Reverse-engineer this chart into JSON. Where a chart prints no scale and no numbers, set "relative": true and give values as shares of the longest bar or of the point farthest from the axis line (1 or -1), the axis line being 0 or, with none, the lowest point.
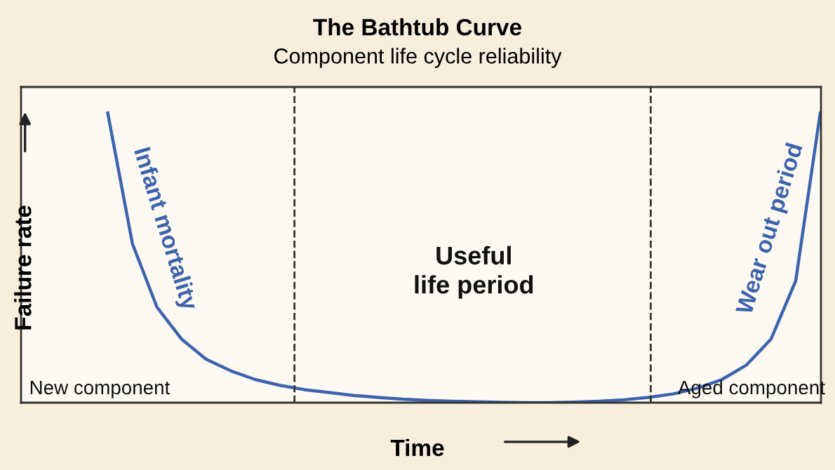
{
  "chart_data": {
    "type": "line",
    "relative": true,
    "title": "The Bathtub Curve",
    "subtitle": "Component life cycle reliability",
    "xlabel": "Time",
    "ylabel": "Failure rate",
    "categories": [
      null,
      null,
      null,
      null,
      null,
      null,
      null,
      null,
      null,
      null,
      null,
      null,
      null,
      null,
      null,
      null,
      null,
      null,
      null,
      null,
      null,
      null,
      null,
      null,
      null,
      null,
      null,
      null,
      null,
      null
    ],
    "series": [
      {
        "color": "#3d63ad",
        "values": [
          1.0,
          0.55,
          0.33,
          0.22,
          0.15,
          0.11,
          0.08,
          0.06,
          0.045,
          0.035,
          0.025,
          0.018,
          0.012,
          0.008,
          0.005,
          0.003,
          0.001,
          0.0,
          0.0,
          0.002,
          0.005,
          0.01,
          0.018,
          0.03,
          0.05,
          0.08,
          0.13,
          0.22,
          0.42,
          1.0
        ]
      }
    ],
    "annotations": [
      "Infant mortality",
      "Useful\nlife period",
      "Wear out period",
      "New component",
      "Aged component"
    ],
    "marker": "none",
    "line_style": "solid",
    "grid": false,
    "legend": false
  }
}
